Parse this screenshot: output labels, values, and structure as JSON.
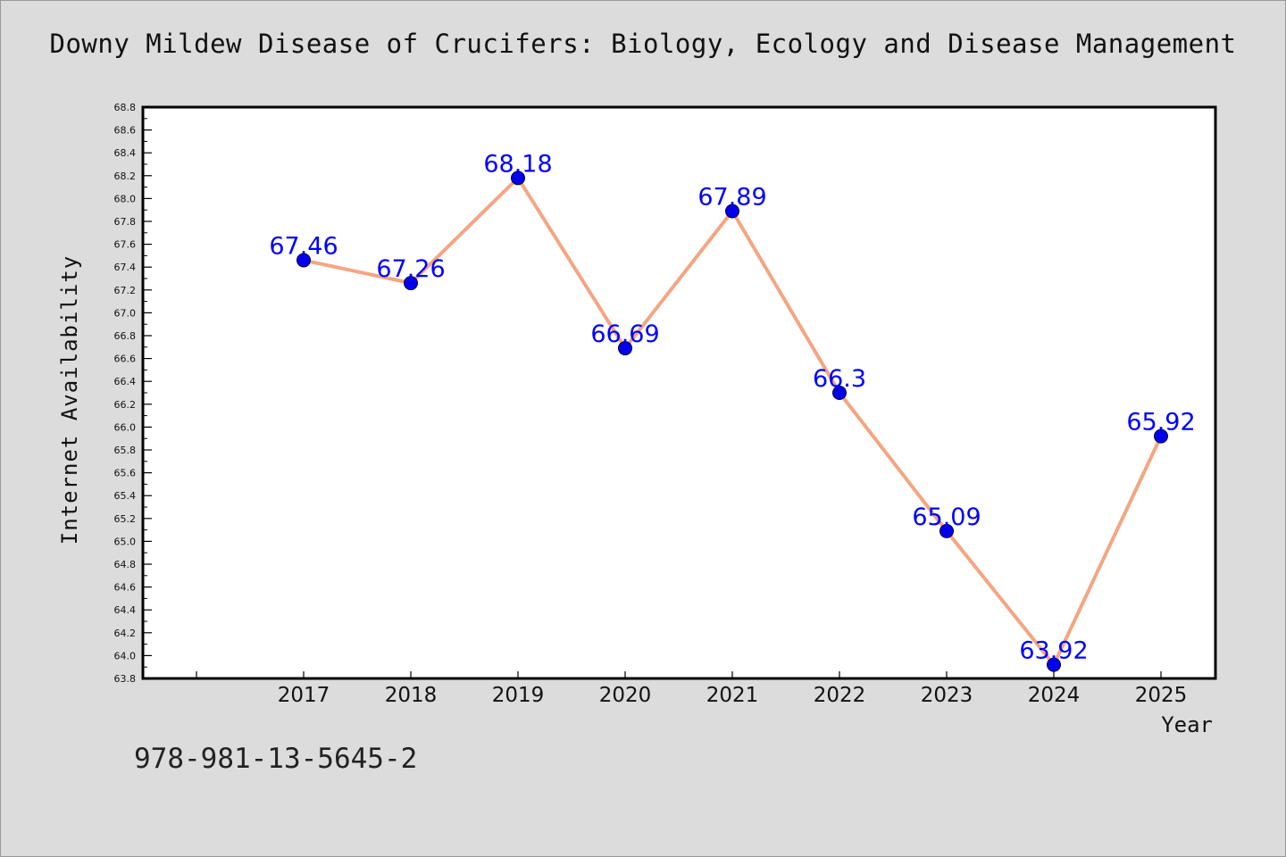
{
  "title": "Downy Mildew Disease of Crucifers: Biology, Ecology and Disease Management",
  "footer_text": "978-981-13-5645-2",
  "colors": {
    "background": "#dcdcdc",
    "plot_background": "#ffffff",
    "line": "#f4a582",
    "marker": "#0000ee",
    "data_label": "#0000ff",
    "axis": "#000000"
  },
  "chart_data": {
    "type": "line",
    "title": "Downy Mildew Disease of Crucifers: Biology, Ecology and Disease Management",
    "xlabel": "Year",
    "ylabel": "Internet Availability",
    "categories": [
      "2017",
      "2018",
      "2019",
      "2020",
      "2021",
      "2022",
      "2023",
      "2024",
      "2025"
    ],
    "series": [
      {
        "values": [
          67.46,
          67.26,
          68.18,
          66.69,
          67.89,
          66.3,
          65.09,
          63.92,
          65.92
        ],
        "labels": [
          "67.46",
          "67.26",
          "68.18",
          "66.69",
          "67.89",
          "66.3",
          "65.09",
          "63.92",
          "65.92"
        ]
      }
    ],
    "ylim": [
      63.8,
      68.8
    ],
    "y_ticks": [
      "63.8",
      "64.0",
      "64.2",
      "64.4",
      "64.6",
      "64.8",
      "65.0",
      "65.2",
      "65.4",
      "65.6",
      "65.8",
      "66.0",
      "66.2",
      "66.4",
      "66.6",
      "66.8",
      "67.0",
      "67.2",
      "67.4",
      "67.6",
      "67.8",
      "68.0",
      "68.2",
      "68.4",
      "68.6",
      "68.8"
    ],
    "grid": false,
    "legend": "none"
  }
}
